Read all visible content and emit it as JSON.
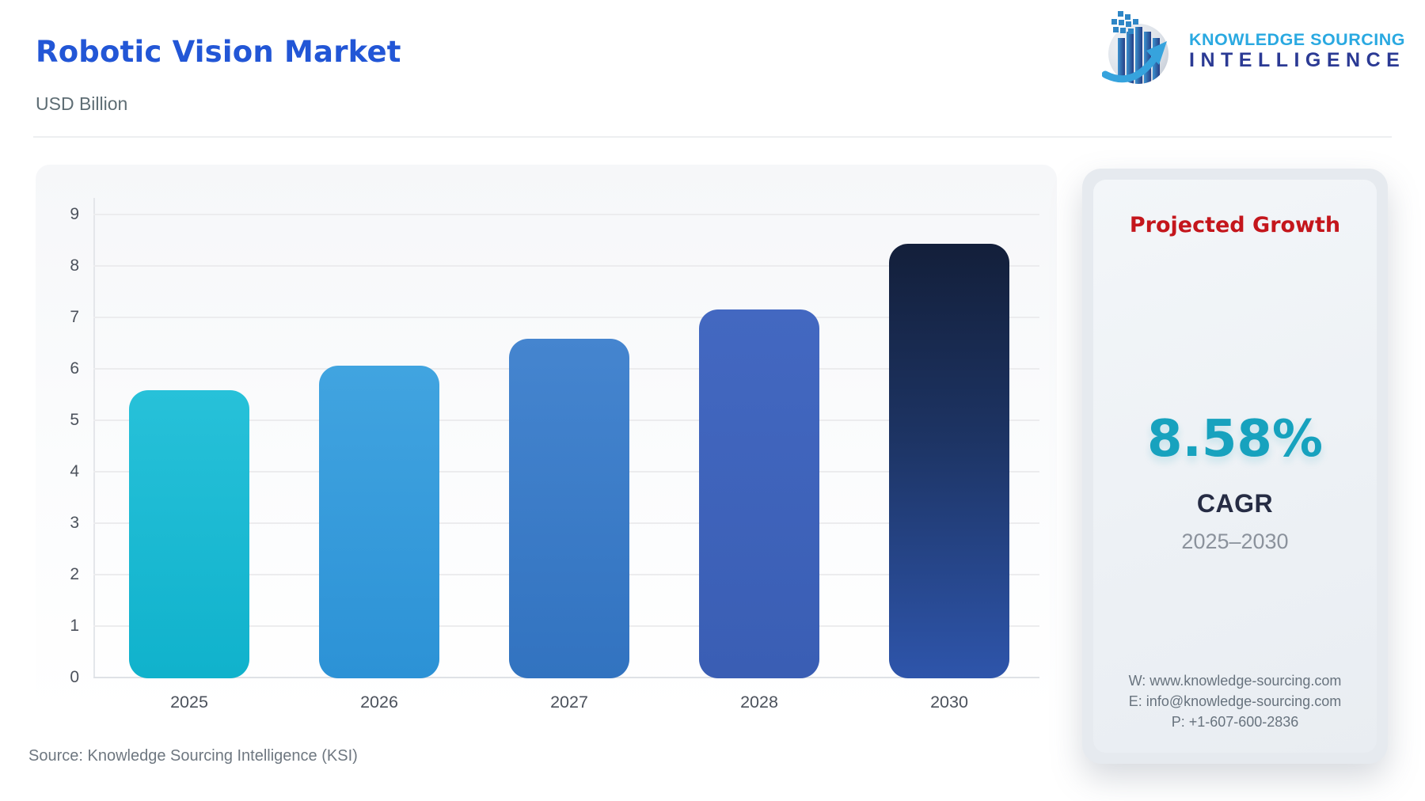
{
  "header": {
    "title": "Robotic Vision Market",
    "subtitle": "USD Billion",
    "logo": {
      "line1": "KNOWLEDGE SOURCING",
      "line2": "INTELLIGENCE"
    }
  },
  "chart_data": {
    "type": "bar",
    "title": "Robotic Vision Market",
    "ylabel": "USD Billion",
    "categories": [
      "2025",
      "2026",
      "2027",
      "2028",
      "2030"
    ],
    "values": [
      5.6,
      6.08,
      6.6,
      7.17,
      8.45
    ],
    "y_ticks": [
      0,
      1,
      2,
      3,
      4,
      5,
      6,
      7,
      8,
      9
    ],
    "ylim": [
      0,
      9
    ],
    "grid": true,
    "legend": "none",
    "bar_gradients": [
      [
        "#27c1d9",
        "#10b2cc"
      ],
      [
        "#41a4e0",
        "#2c92d6"
      ],
      [
        "#4585cf",
        "#3273c0"
      ],
      [
        "#4368c1",
        "#3a5eb4"
      ],
      [
        "#131f3a",
        "#1d3464 45%",
        "#2e55ab"
      ]
    ]
  },
  "footer": {
    "source": "Source: Knowledge Sourcing Intelligence (KSI)"
  },
  "growth_panel": {
    "heading": "Projected Growth",
    "heading_color": "#c4161c",
    "cagr_value": "8.58%",
    "accent_color": "#17a2be",
    "cagr_label": "CAGR",
    "period": "2025–2030",
    "contact": {
      "website": "W: www.knowledge-sourcing.com",
      "email": "E: info@knowledge-sourcing.com",
      "phone": "P: +1-607-600-2836"
    }
  }
}
